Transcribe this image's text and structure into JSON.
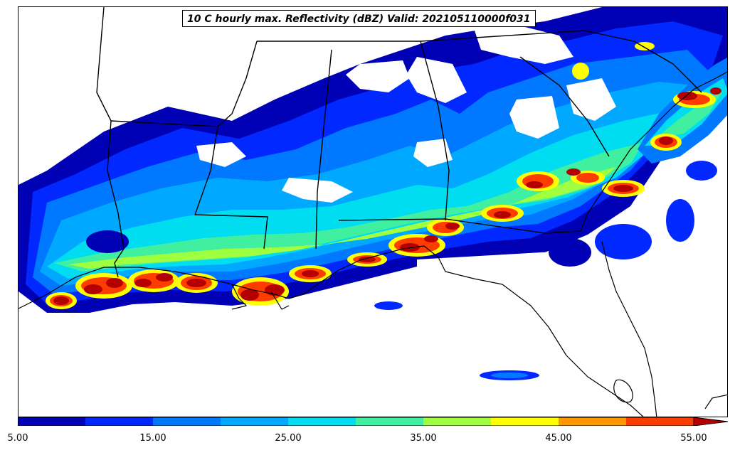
{
  "title": "10 C hourly max. Reflectivity (dBZ) Valid: 202105110000f031",
  "colorbar": {
    "levels": [
      5,
      10,
      15,
      20,
      25,
      30,
      35,
      40,
      45,
      50,
      55
    ],
    "tick_labels": [
      "5.00",
      "15.00",
      "25.00",
      "35.00",
      "45.00",
      "55.00"
    ],
    "colors": [
      "#0000b4",
      "#0028ff",
      "#0078ff",
      "#00a8ff",
      "#00dcf0",
      "#40f0a0",
      "#a0ff40",
      "#ffff00",
      "#ff9600",
      "#ff3c00",
      "#b40000"
    ],
    "extend": "max"
  },
  "map": {
    "region": "Southeastern United States",
    "background": "#ffffff",
    "border_color": "#000000"
  }
}
